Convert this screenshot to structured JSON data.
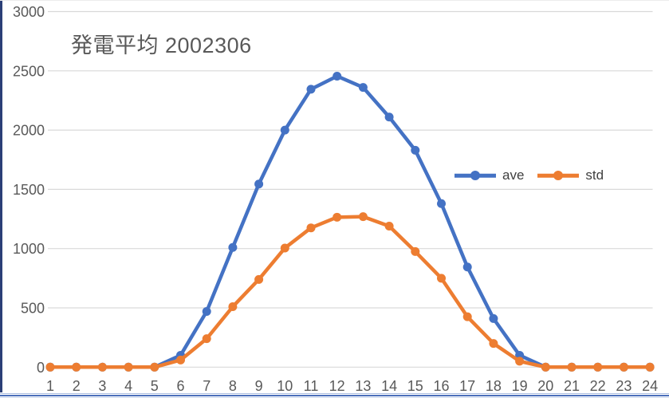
{
  "window": {
    "left_border_color": "#2b3f77",
    "bottom_border_color": "#4c70bb",
    "background": "#ffffff"
  },
  "chart_data": {
    "type": "line",
    "title": "発電平均 2002306",
    "title_color": "#595959",
    "categories": [
      1,
      2,
      3,
      4,
      5,
      6,
      7,
      8,
      9,
      10,
      11,
      12,
      13,
      14,
      15,
      16,
      17,
      18,
      19,
      20,
      21,
      22,
      23,
      24
    ],
    "series": [
      {
        "name": "ave",
        "color": "#4472C4",
        "values": [
          0,
          0,
          0,
          0,
          0,
          100,
          470,
          1010,
          1545,
          2000,
          2345,
          2455,
          2360,
          2110,
          1830,
          1380,
          845,
          410,
          100,
          0,
          0,
          0,
          0,
          0
        ]
      },
      {
        "name": "std",
        "color": "#ED7D31",
        "values": [
          0,
          0,
          0,
          0,
          0,
          60,
          240,
          510,
          740,
          1005,
          1175,
          1265,
          1270,
          1190,
          975,
          750,
          425,
          200,
          50,
          0,
          0,
          0,
          0,
          0
        ]
      }
    ],
    "xlabel": "",
    "ylabel": "",
    "ylim": [
      0,
      3000
    ],
    "yticks": [
      0,
      500,
      1000,
      1500,
      2000,
      2500,
      3000
    ],
    "grid": true,
    "gridline_color": "#d9d9d9",
    "axis_label_color": "#595959",
    "legend_position": "middle-right",
    "legend_labels": [
      "ave",
      "std"
    ]
  }
}
